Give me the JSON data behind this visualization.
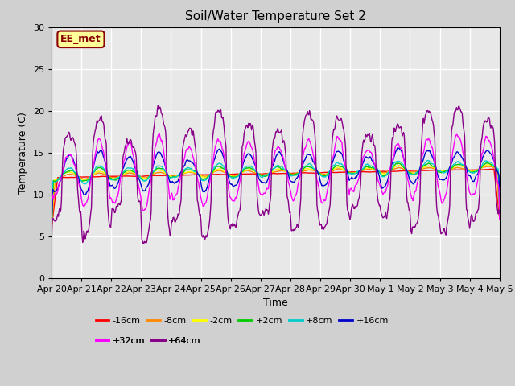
{
  "title": "Soil/Water Temperature Set 2",
  "xlabel": "Time",
  "ylabel": "Temperature (C)",
  "ylim": [
    0,
    30
  ],
  "yticks": [
    0,
    5,
    10,
    15,
    20,
    25,
    30
  ],
  "fig_bg": "#d0d0d0",
  "plot_bg": "#e8e8e8",
  "annotation_text": "EE_met",
  "annotation_bg": "#ffff99",
  "annotation_border": "#8B0000",
  "annotation_text_color": "#8B0000",
  "series_colors": [
    "#ff0000",
    "#ff8800",
    "#ffff00",
    "#00cc00",
    "#00cccc",
    "#0000cc",
    "#ff00ff",
    "#880088"
  ],
  "series_labels": [
    "-16cm",
    "-8cm",
    "-2cm",
    "+2cm",
    "+8cm",
    "+16cm",
    "+32cm",
    "+64cm"
  ],
  "xticklabels": [
    "Apr 20",
    "Apr 21",
    "Apr 22",
    "Apr 23",
    "Apr 24",
    "Apr 25",
    "Apr 26",
    "Apr 27",
    "Apr 28",
    "Apr 29",
    "Apr 30",
    "May 1",
    "May 2",
    "May 3",
    "May 4",
    "May 5"
  ],
  "n_days": 15,
  "n_per_day": 48
}
